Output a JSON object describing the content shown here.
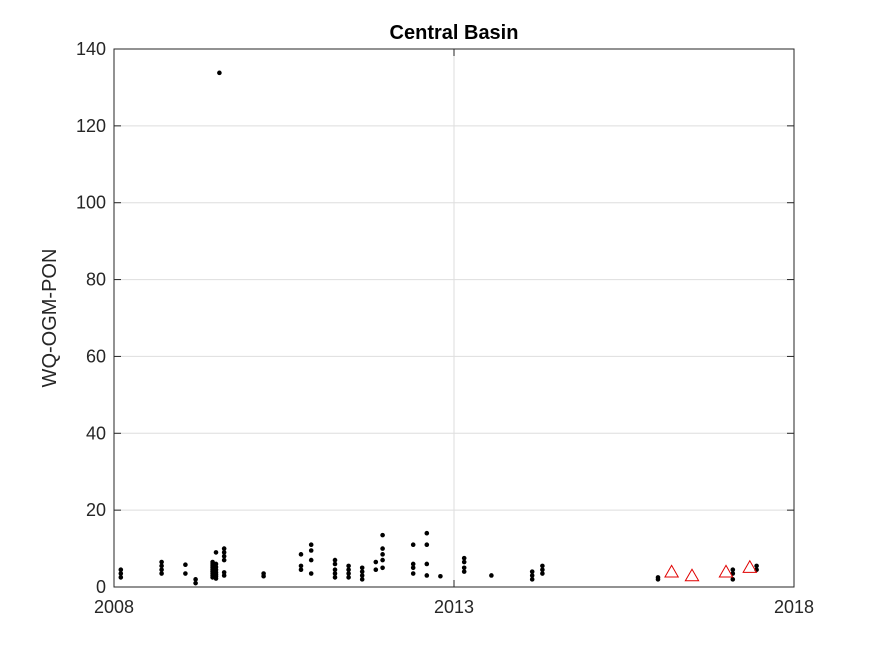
{
  "chart_data": {
    "type": "scatter",
    "title": "Central Basin",
    "xlabel": "",
    "ylabel": "WQ-OGM-PON",
    "xlim": [
      2008,
      2018
    ],
    "ylim": [
      0,
      140
    ],
    "x_ticks": [
      2008,
      2013,
      2018
    ],
    "y_ticks": [
      0,
      20,
      40,
      60,
      80,
      100,
      120,
      140
    ],
    "grid": true,
    "legend": "none",
    "series": [
      {
        "marker": "dot",
        "color": "#000000",
        "points": [
          [
            2008.1,
            2.5
          ],
          [
            2008.1,
            3.5
          ],
          [
            2008.1,
            4.5
          ],
          [
            2008.7,
            3.5
          ],
          [
            2008.7,
            4.5
          ],
          [
            2008.7,
            5.5
          ],
          [
            2008.7,
            6.5
          ],
          [
            2009.05,
            3.5
          ],
          [
            2009.05,
            5.8
          ],
          [
            2009.2,
            1.0
          ],
          [
            2009.2,
            2.0
          ],
          [
            2009.45,
            2.5
          ],
          [
            2009.45,
            3.0
          ],
          [
            2009.45,
            3.5
          ],
          [
            2009.45,
            4.0
          ],
          [
            2009.45,
            4.5
          ],
          [
            2009.45,
            5.0
          ],
          [
            2009.45,
            5.5
          ],
          [
            2009.45,
            6.0
          ],
          [
            2009.45,
            6.5
          ],
          [
            2009.5,
            2.2
          ],
          [
            2009.5,
            2.8
          ],
          [
            2009.5,
            3.3
          ],
          [
            2009.5,
            3.8
          ],
          [
            2009.5,
            4.5
          ],
          [
            2009.5,
            5.2
          ],
          [
            2009.5,
            6.0
          ],
          [
            2009.5,
            9.0
          ],
          [
            2009.55,
            133.8
          ],
          [
            2009.62,
            3.0
          ],
          [
            2009.62,
            3.8
          ],
          [
            2009.62,
            7.0
          ],
          [
            2009.62,
            8.0
          ],
          [
            2009.62,
            9.0
          ],
          [
            2009.62,
            10.0
          ],
          [
            2010.2,
            2.8
          ],
          [
            2010.2,
            3.5
          ],
          [
            2010.75,
            4.5
          ],
          [
            2010.75,
            5.5
          ],
          [
            2010.75,
            8.5
          ],
          [
            2010.9,
            3.5
          ],
          [
            2010.9,
            7.0
          ],
          [
            2010.9,
            9.5
          ],
          [
            2010.9,
            11.0
          ],
          [
            2011.25,
            2.5
          ],
          [
            2011.25,
            3.5
          ],
          [
            2011.25,
            4.5
          ],
          [
            2011.25,
            6.0
          ],
          [
            2011.25,
            7.0
          ],
          [
            2011.45,
            2.5
          ],
          [
            2011.45,
            3.5
          ],
          [
            2011.45,
            4.5
          ],
          [
            2011.45,
            5.5
          ],
          [
            2011.65,
            2.0
          ],
          [
            2011.65,
            3.0
          ],
          [
            2011.65,
            4.0
          ],
          [
            2011.65,
            5.0
          ],
          [
            2011.85,
            4.5
          ],
          [
            2011.85,
            6.5
          ],
          [
            2011.95,
            5.0
          ],
          [
            2011.95,
            7.0
          ],
          [
            2011.95,
            8.5
          ],
          [
            2011.95,
            10.0
          ],
          [
            2011.95,
            13.5
          ],
          [
            2012.4,
            3.5
          ],
          [
            2012.4,
            5.0
          ],
          [
            2012.4,
            6.0
          ],
          [
            2012.4,
            11.0
          ],
          [
            2012.6,
            3.0
          ],
          [
            2012.6,
            6.0
          ],
          [
            2012.6,
            11.0
          ],
          [
            2012.6,
            14.0
          ],
          [
            2012.8,
            2.8
          ],
          [
            2013.15,
            4.0
          ],
          [
            2013.15,
            5.0
          ],
          [
            2013.15,
            6.5
          ],
          [
            2013.15,
            7.5
          ],
          [
            2013.55,
            3.0
          ],
          [
            2014.15,
            2.0
          ],
          [
            2014.15,
            3.0
          ],
          [
            2014.15,
            4.0
          ],
          [
            2014.3,
            3.5
          ],
          [
            2014.3,
            4.5
          ],
          [
            2014.3,
            5.5
          ],
          [
            2016.0,
            2.0
          ],
          [
            2016.0,
            2.5
          ],
          [
            2017.1,
            2.0
          ],
          [
            2017.1,
            3.5
          ],
          [
            2017.1,
            4.5
          ],
          [
            2017.45,
            4.5
          ],
          [
            2017.45,
            5.5
          ]
        ]
      },
      {
        "marker": "triangle",
        "color": "#e00000",
        "points": [
          [
            2016.2,
            3.8
          ],
          [
            2016.5,
            2.8
          ],
          [
            2017.0,
            3.8
          ],
          [
            2017.35,
            5.0
          ]
        ]
      }
    ]
  }
}
